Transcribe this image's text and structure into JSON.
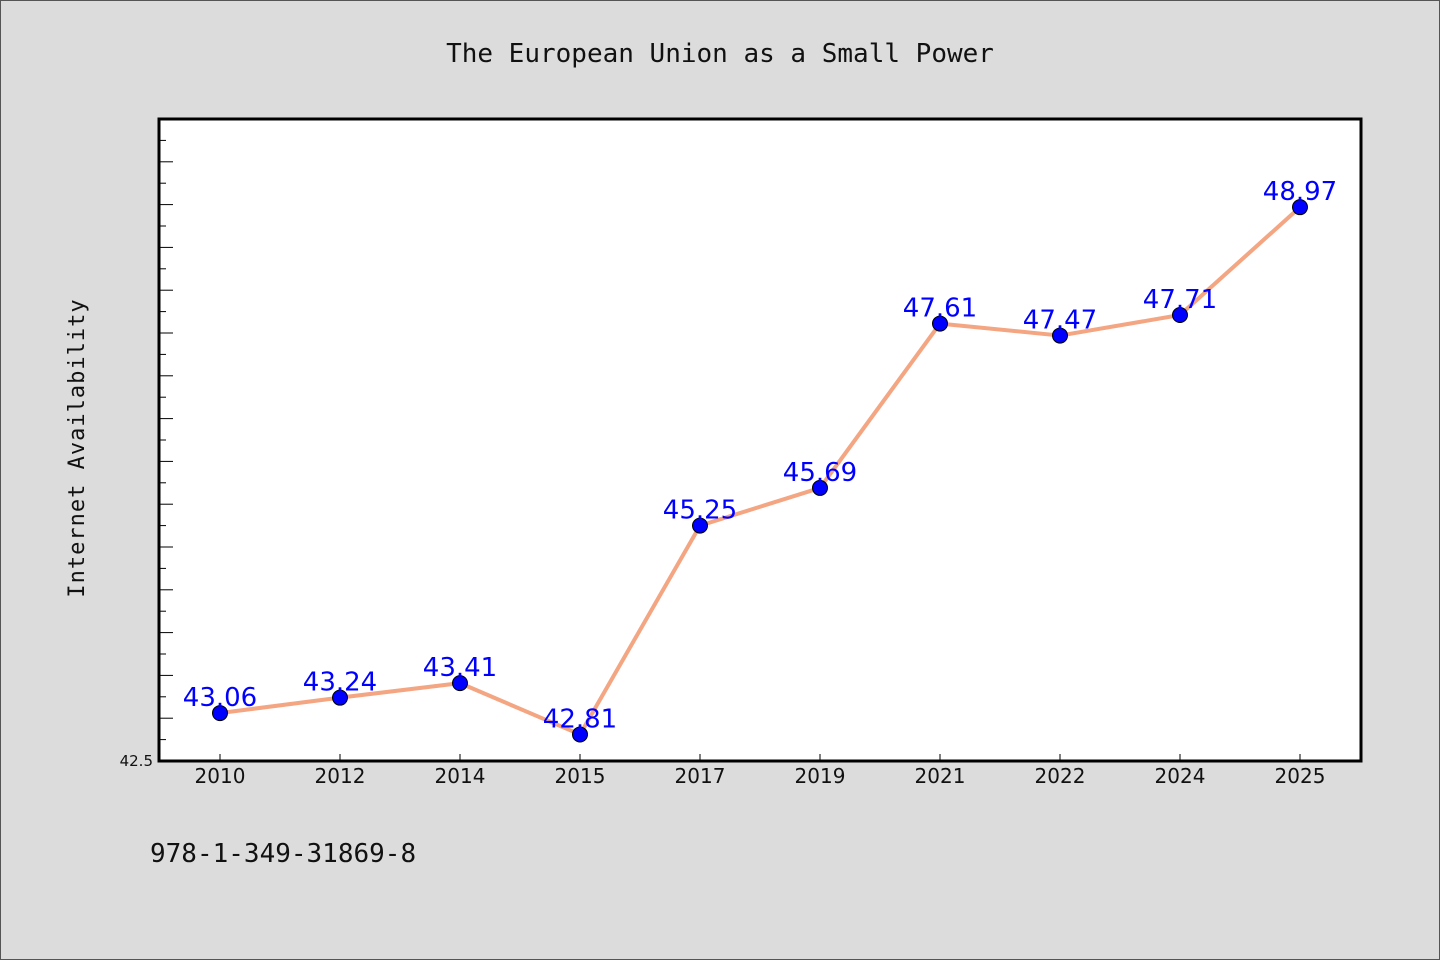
{
  "chart_data": {
    "type": "line",
    "title": "The European Union as a Small Power",
    "xlabel": "",
    "ylabel": "Internet Availability",
    "categories": [
      "2010",
      "2012",
      "2014",
      "2015",
      "2017",
      "2019",
      "2021",
      "2022",
      "2024",
      "2025"
    ],
    "series": [
      {
        "values": [
          43.06,
          43.24,
          43.41,
          42.81,
          45.25,
          45.69,
          47.61,
          47.47,
          47.71,
          48.97
        ]
      }
    ],
    "data_labels": [
      "43.06",
      "43.24",
      "43.41",
      "42.81",
      "45.25",
      "45.69",
      "47.61",
      "47.47",
      "47.71",
      "48.97"
    ],
    "ymin_label": "42.5",
    "ylim": [
      42.5,
      50.0
    ],
    "grid": false,
    "colors": {
      "line": "#f4a582",
      "marker": "#0000ff",
      "label": "#0000ff",
      "plot_bg": "#ffffff",
      "page_bg": "#dcdcdc"
    }
  },
  "annotation": "978-1-349-31869-8"
}
